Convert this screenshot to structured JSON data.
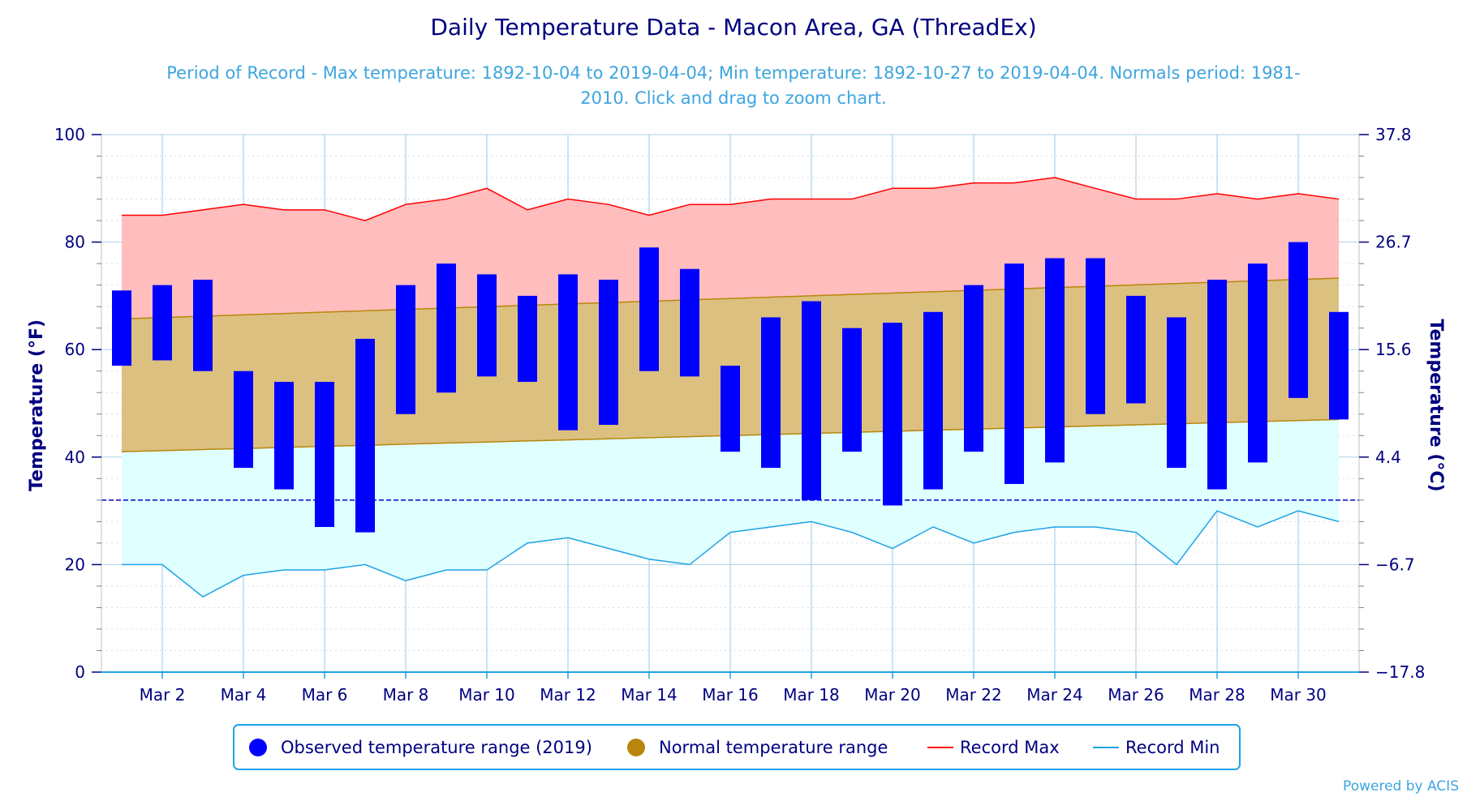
{
  "title": "Daily Temperature Data - Macon Area, GA (ThreadEx)",
  "subtitle_line1": "Period of Record - Max temperature: 1892-10-04 to 2019-04-04; Min temperature: 1892-10-27 to 2019-04-04. Normals period: 1981-",
  "subtitle_line2": "2010. Click and drag to zoom chart.",
  "credit": "Powered by ACIS",
  "colors": {
    "title": "#000080",
    "subtitle": "#3da5df",
    "observed": "#0000ff",
    "normal": "#b8860b",
    "normal_fill": "#dcc080",
    "record_max": "#ff0000",
    "record_max_fill": "#ffbdbd",
    "record_min": "#1ea3e6",
    "record_min_fill": "#e0ffff",
    "grid": "#a9d2ea",
    "freeze_line": "#0000cc"
  },
  "chart_data": {
    "type": "bar",
    "title": "Daily Temperature Data - Macon Area, GA (ThreadEx)",
    "ylabel_left": "Temperature (°F)",
    "ylabel_right": "Temperature (°C)",
    "ylim": [
      0,
      100
    ],
    "yticks_left": [
      "0",
      "20",
      "40",
      "60",
      "80",
      "100"
    ],
    "yticks_right": [
      "−17.8",
      "−6.7",
      "4.4",
      "15.6",
      "26.7",
      "37.8"
    ],
    "days": [
      1,
      2,
      3,
      4,
      5,
      6,
      7,
      8,
      9,
      10,
      11,
      12,
      13,
      14,
      15,
      16,
      17,
      18,
      19,
      20,
      21,
      22,
      23,
      24,
      25,
      26,
      27,
      28,
      29,
      30,
      31
    ],
    "xtick_days": [
      2,
      4,
      6,
      8,
      10,
      12,
      14,
      16,
      18,
      20,
      22,
      24,
      26,
      28,
      30
    ],
    "xtick_labels": [
      "Mar 2",
      "Mar 4",
      "Mar 6",
      "Mar 8",
      "Mar 10",
      "Mar 12",
      "Mar 14",
      "Mar 16",
      "Mar 18",
      "Mar 20",
      "Mar 22",
      "Mar 24",
      "Mar 26",
      "Mar 28",
      "Mar 30"
    ],
    "freeze_line": 32,
    "series": [
      {
        "name": "Observed temperature range (2019)",
        "low": [
          57,
          58,
          56,
          38,
          34,
          27,
          26,
          48,
          52,
          55,
          54,
          45,
          46,
          56,
          55,
          41,
          38,
          32,
          41,
          31,
          34,
          41,
          35,
          39,
          48,
          50,
          38,
          34,
          39,
          51,
          47
        ],
        "high": [
          71,
          72,
          73,
          56,
          54,
          54,
          62,
          72,
          76,
          74,
          70,
          74,
          73,
          79,
          75,
          57,
          66,
          69,
          64,
          65,
          67,
          72,
          76,
          77,
          77,
          70,
          66,
          73,
          76,
          80,
          67
        ]
      },
      {
        "name": "Normal temperature range",
        "low_start": 41,
        "low_end": 47,
        "high_start": 65.7,
        "high_end": 73.3
      },
      {
        "name": "Record Max",
        "values": [
          85,
          85,
          86,
          87,
          86,
          86,
          84,
          87,
          88,
          90,
          86,
          88,
          87,
          85,
          87,
          87,
          88,
          88,
          88,
          90,
          90,
          91,
          91,
          92,
          90,
          88,
          88,
          89,
          88,
          89,
          88
        ]
      },
      {
        "name": "Record Min",
        "values": [
          20,
          20,
          14,
          18,
          19,
          19,
          20,
          17,
          19,
          19,
          24,
          25,
          23,
          21,
          20,
          26,
          27,
          28,
          26,
          23,
          27,
          24,
          26,
          27,
          27,
          26,
          20,
          30,
          27,
          30,
          28
        ]
      }
    ],
    "legend": [
      {
        "label": "Observed temperature range (2019)",
        "shape": "circle",
        "color": "#0000ff"
      },
      {
        "label": "Normal temperature range",
        "shape": "circle",
        "color": "#b8860b"
      },
      {
        "label": "Record Max",
        "shape": "line",
        "color": "#ff0000"
      },
      {
        "label": "Record Min",
        "shape": "line",
        "color": "#1ea3e6"
      }
    ],
    "legend_position": "bottom-center",
    "grid": true
  }
}
